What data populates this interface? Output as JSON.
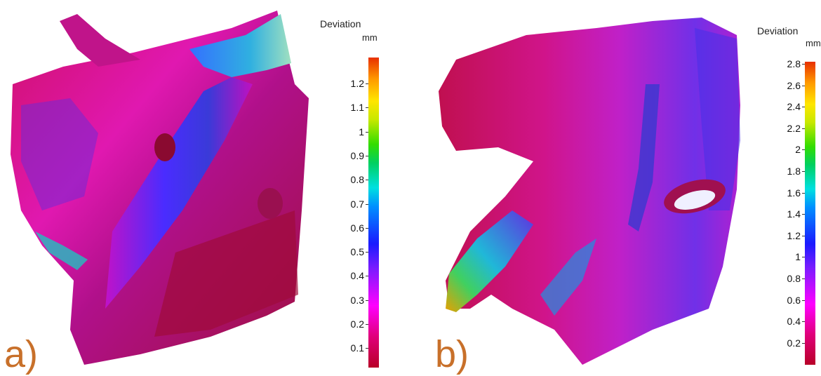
{
  "panel_a": {
    "label": "a)",
    "legend": {
      "title": "Deviation",
      "unit": "mm",
      "ticks": [
        "1.2",
        "1.1",
        "1",
        "0.9",
        "0.8",
        "0.7",
        "0.6",
        "0.5",
        "0.4",
        "0.3",
        "0.2",
        "0.1"
      ]
    }
  },
  "panel_b": {
    "label": "b)",
    "legend": {
      "title": "Deviation",
      "unit": "mm",
      "ticks": [
        "2.8",
        "2.6",
        "2.4",
        "2.2",
        "2",
        "1.8",
        "1.6",
        "1.4",
        "1.2",
        "1",
        "0.8",
        "0.6",
        "0.4",
        "0.2"
      ]
    }
  },
  "colors": {
    "label_color": "#c8702a",
    "scale_low": "#b80028",
    "scale_mid": "#1a1aff",
    "scale_high": "#e83000"
  }
}
